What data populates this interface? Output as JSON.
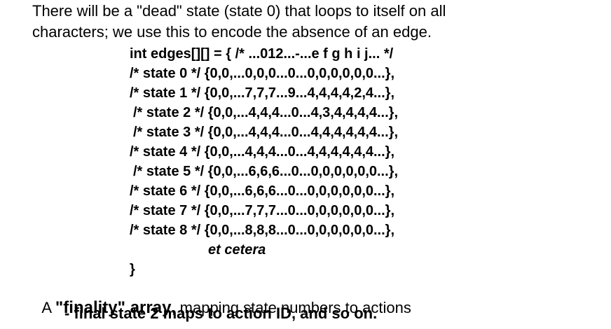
{
  "intro": {
    "line1": "There will be a \"dead\" state (state 0) that loops to itself on all",
    "line2": "characters; we use this to encode the absence of an edge."
  },
  "code": {
    "declaration": "int edges[][] = { /* ...012...-...e f g h i j... */",
    "rows": [
      "/* state 0 */ {0,0,...0,0,0...0...0,0,0,0,0,0...},",
      "/* state 1 */ {0,0,...7,7,7...9...4,4,4,4,2,4...},",
      "/* state 2 */ {0,0,...4,4,4...0...4,3,4,4,4,4...},",
      "/* state 3 */ {0,0,...4,4,4...0...4,4,4,4,4,4...},",
      "/* state 4 */ {0,0,...4,4,4...0...4,4,4,4,4,4...},",
      "/* state 5 */ {0,0,...6,6,6...0...0,0,0,0,0,0...},",
      "/* state 6 */ {0,0,...6,6,6...0...0,0,0,0,0,0...},",
      "/* state 7 */ {0,0,...7,7,7...0...0,0,0,0,0,0...},",
      "/* state 8 */ {0,0,...8,8,8...0...0,0,0,0,0,0...},"
    ],
    "etcetera": "et cetera",
    "closing": "}"
  },
  "finality": {
    "prefix": "A ",
    "bold_term": "\"finality\" array",
    "rest": ", mapping state numbers to actions"
  },
  "sub_point": "- final state 2 maps to action ID, and so on."
}
